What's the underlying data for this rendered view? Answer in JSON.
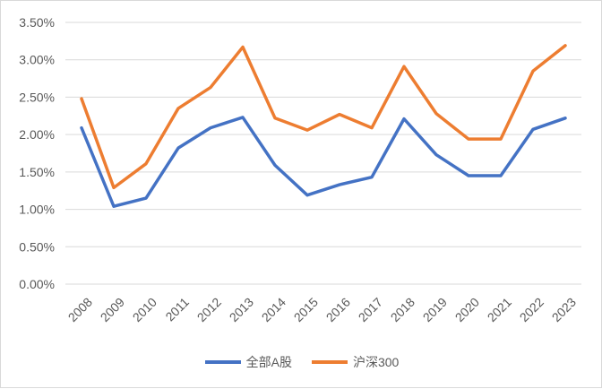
{
  "chart_data": {
    "type": "line",
    "title": "",
    "xlabel": "",
    "ylabel": "",
    "categories": [
      "2008",
      "2009",
      "2010",
      "2011",
      "2012",
      "2013",
      "2014",
      "2015",
      "2016",
      "2017",
      "2018",
      "2019",
      "2020",
      "2021",
      "2022",
      "2023"
    ],
    "ylim": [
      0,
      3.5
    ],
    "yticks": [
      "0.00%",
      "0.50%",
      "1.00%",
      "1.50%",
      "2.00%",
      "2.50%",
      "3.00%",
      "3.50%"
    ],
    "grid": true,
    "legend_position": "bottom",
    "series": [
      {
        "name": "全部A股",
        "color": "#4472C4",
        "values": [
          2.09,
          1.04,
          1.15,
          1.82,
          2.09,
          2.23,
          1.59,
          1.19,
          1.33,
          1.43,
          2.21,
          1.73,
          1.45,
          1.45,
          2.07,
          2.22
        ]
      },
      {
        "name": "沪深300",
        "color": "#ED7D31",
        "values": [
          2.48,
          1.29,
          1.61,
          2.35,
          2.63,
          3.17,
          2.22,
          2.06,
          2.27,
          2.09,
          2.91,
          2.28,
          1.94,
          1.94,
          2.85,
          3.19
        ]
      }
    ]
  }
}
